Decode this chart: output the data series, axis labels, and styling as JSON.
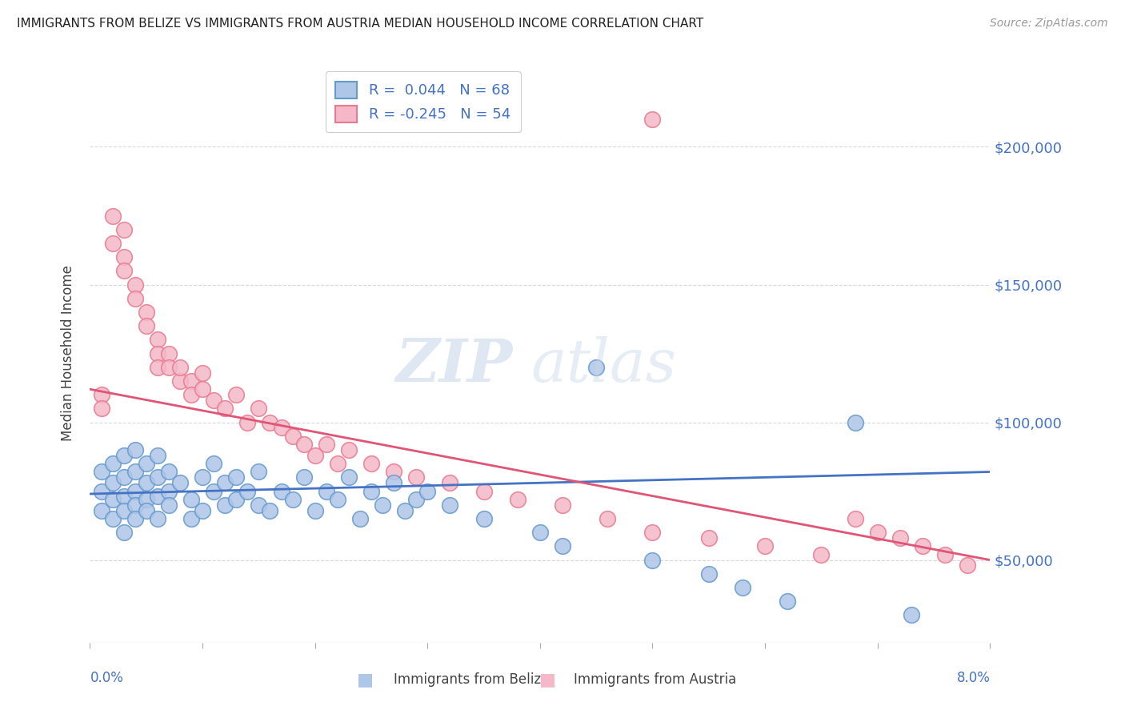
{
  "title": "IMMIGRANTS FROM BELIZE VS IMMIGRANTS FROM AUSTRIA MEDIAN HOUSEHOLD INCOME CORRELATION CHART",
  "source": "Source: ZipAtlas.com",
  "ylabel": "Median Household Income",
  "xlim": [
    0.0,
    0.08
  ],
  "ylim": [
    20000,
    230000
  ],
  "yticks": [
    50000,
    100000,
    150000,
    200000
  ],
  "bg_color": "#ffffff",
  "grid_color": "#d8d8d8",
  "belize_color": "#aec6e8",
  "belize_edge_color": "#6699cc",
  "austria_color": "#f4b8c8",
  "austria_edge_color": "#e87a90",
  "belize_line_color": "#4472c4",
  "austria_line_color": "#e05575",
  "belize_R": 0.044,
  "belize_N": 68,
  "austria_R": -0.245,
  "austria_N": 54,
  "legend_label_belize": "Immigrants from Belize",
  "legend_label_austria": "Immigrants from Austria",
  "belize_trend_x0": 0.0,
  "belize_trend_y0": 74000,
  "belize_trend_x1": 0.08,
  "belize_trend_y1": 82000,
  "austria_trend_x0": 0.0,
  "austria_trend_y0": 112000,
  "austria_trend_x1": 0.08,
  "austria_trend_y1": 50000,
  "belize_x": [
    0.001,
    0.001,
    0.001,
    0.002,
    0.002,
    0.002,
    0.002,
    0.003,
    0.003,
    0.003,
    0.003,
    0.003,
    0.004,
    0.004,
    0.004,
    0.004,
    0.004,
    0.005,
    0.005,
    0.005,
    0.005,
    0.006,
    0.006,
    0.006,
    0.006,
    0.007,
    0.007,
    0.007,
    0.008,
    0.009,
    0.009,
    0.01,
    0.01,
    0.011,
    0.011,
    0.012,
    0.012,
    0.013,
    0.013,
    0.014,
    0.015,
    0.015,
    0.016,
    0.017,
    0.018,
    0.019,
    0.02,
    0.021,
    0.022,
    0.023,
    0.024,
    0.025,
    0.026,
    0.027,
    0.028,
    0.029,
    0.03,
    0.032,
    0.035,
    0.04,
    0.042,
    0.045,
    0.05,
    0.055,
    0.058,
    0.062,
    0.068,
    0.073
  ],
  "belize_y": [
    75000,
    68000,
    82000,
    78000,
    72000,
    85000,
    65000,
    80000,
    73000,
    88000,
    68000,
    60000,
    75000,
    70000,
    82000,
    65000,
    90000,
    78000,
    72000,
    85000,
    68000,
    80000,
    73000,
    65000,
    88000,
    75000,
    70000,
    82000,
    78000,
    65000,
    72000,
    80000,
    68000,
    75000,
    85000,
    70000,
    78000,
    72000,
    80000,
    75000,
    70000,
    82000,
    68000,
    75000,
    72000,
    80000,
    68000,
    75000,
    72000,
    80000,
    65000,
    75000,
    70000,
    78000,
    68000,
    72000,
    75000,
    70000,
    65000,
    60000,
    55000,
    120000,
    50000,
    45000,
    40000,
    35000,
    100000,
    30000
  ],
  "austria_x": [
    0.001,
    0.001,
    0.002,
    0.002,
    0.003,
    0.003,
    0.003,
    0.004,
    0.004,
    0.005,
    0.005,
    0.006,
    0.006,
    0.006,
    0.007,
    0.007,
    0.008,
    0.008,
    0.009,
    0.009,
    0.01,
    0.01,
    0.011,
    0.012,
    0.013,
    0.014,
    0.015,
    0.016,
    0.017,
    0.018,
    0.019,
    0.02,
    0.021,
    0.022,
    0.023,
    0.025,
    0.027,
    0.029,
    0.032,
    0.035,
    0.038,
    0.042,
    0.046,
    0.05,
    0.055,
    0.06,
    0.065,
    0.05,
    0.068,
    0.07,
    0.072,
    0.074,
    0.076,
    0.078
  ],
  "austria_y": [
    110000,
    105000,
    165000,
    175000,
    160000,
    155000,
    170000,
    150000,
    145000,
    140000,
    135000,
    130000,
    125000,
    120000,
    125000,
    120000,
    115000,
    120000,
    115000,
    110000,
    118000,
    112000,
    108000,
    105000,
    110000,
    100000,
    105000,
    100000,
    98000,
    95000,
    92000,
    88000,
    92000,
    85000,
    90000,
    85000,
    82000,
    80000,
    78000,
    75000,
    72000,
    70000,
    65000,
    60000,
    58000,
    55000,
    52000,
    210000,
    65000,
    60000,
    58000,
    55000,
    52000,
    48000
  ]
}
